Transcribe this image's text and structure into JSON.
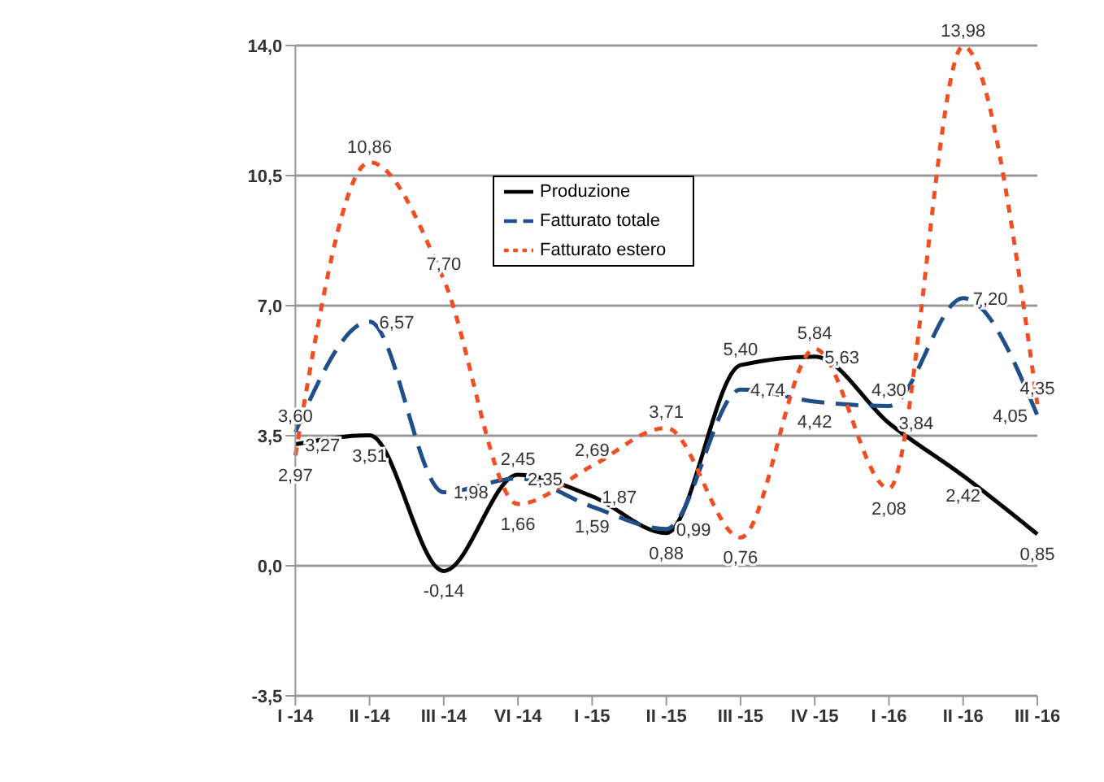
{
  "chart_data": {
    "type": "line",
    "categories": [
      "I -14",
      "II -14",
      "III -14",
      "VI -14",
      "I -15",
      "II -15",
      "III -15",
      "IV -15",
      "I -16",
      "II -16",
      "III -16"
    ],
    "series": [
      {
        "name": "Produzione",
        "color": "#000000",
        "line_style": "solid",
        "values": [
          3.27,
          3.51,
          -0.14,
          2.45,
          1.87,
          0.88,
          5.4,
          5.63,
          3.84,
          2.42,
          0.85
        ],
        "value_labels": [
          "3,27",
          "3,51",
          "-0,14",
          "2,45",
          "1,87",
          "0,88",
          "5,40",
          "5,63",
          "3,84",
          "2,42",
          "0,85"
        ]
      },
      {
        "name": "Fatturato totale",
        "color": "#1f4e89",
        "line_style": "dashed",
        "values": [
          3.6,
          6.57,
          1.98,
          2.35,
          1.59,
          0.99,
          4.74,
          4.42,
          4.3,
          7.2,
          4.05
        ],
        "value_labels": [
          "3,60",
          "6,57",
          "1,98",
          "2,35",
          "1,59",
          "0,99",
          "4,74",
          "4,42",
          "4,30",
          "7,20",
          "4,05"
        ]
      },
      {
        "name": "Fatturato estero",
        "color": "#f04e23",
        "line_style": "dotted",
        "values": [
          2.97,
          10.86,
          7.7,
          1.66,
          2.69,
          3.71,
          0.76,
          5.84,
          2.08,
          13.98,
          4.35
        ],
        "value_labels": [
          "2,97",
          "10,86",
          "7,70",
          "1,66",
          "2,69",
          "3,71",
          "0,76",
          "5,84",
          "2,08",
          "13,98",
          "4,35"
        ]
      }
    ],
    "ylim": [
      -3.5,
      14
    ],
    "yticks": [
      {
        "value": -3.5,
        "label": "-3,5"
      },
      {
        "value": 0,
        "label": "0,0"
      },
      {
        "value": 3.5,
        "label": "3,5"
      },
      {
        "value": 7,
        "label": "7,0"
      },
      {
        "value": 10.5,
        "label": "10,5"
      },
      {
        "value": 14,
        "label": "14,0"
      }
    ],
    "grid": "y",
    "legend": "top",
    "marker": "none"
  }
}
